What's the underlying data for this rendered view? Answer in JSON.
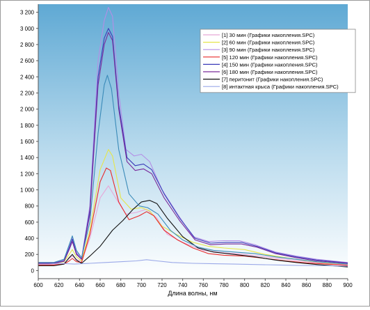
{
  "chart_data": {
    "type": "line",
    "title": "",
    "xlabel": "Длина волны, нм",
    "ylabel": "",
    "xlim": [
      600,
      900
    ],
    "ylim": [
      -100,
      3300
    ],
    "x_ticks": [
      "600",
      "620",
      "640",
      "660",
      "680",
      "700",
      "720",
      "740",
      "760",
      "780",
      "800",
      "820",
      "840",
      "860",
      "880",
      "900"
    ],
    "y_ticks": [
      "0",
      "200",
      "400",
      "600",
      "800",
      "1 000",
      "1 200",
      "1 400",
      "1 600",
      "1 800",
      "2 000",
      "2 200",
      "2 400",
      "2 600",
      "2 800",
      "3 000",
      "3 200"
    ],
    "grid": false,
    "legend_position": "top-right",
    "background": "gradient-blue-white",
    "series": [
      {
        "name": "[1] 30 мин (Графики накопления.SPC)",
        "color": "#e8a6d8",
        "points": [
          [
            600,
            80
          ],
          [
            615,
            80
          ],
          [
            625,
            90
          ],
          [
            630,
            150
          ],
          [
            633,
            180
          ],
          [
            637,
            140
          ],
          [
            642,
            110
          ],
          [
            650,
            400
          ],
          [
            660,
            900
          ],
          [
            668,
            1050
          ],
          [
            675,
            900
          ],
          [
            685,
            700
          ],
          [
            695,
            720
          ],
          [
            705,
            760
          ],
          [
            715,
            650
          ],
          [
            725,
            450
          ],
          [
            740,
            350
          ],
          [
            760,
            250
          ],
          [
            780,
            220
          ],
          [
            800,
            200
          ],
          [
            820,
            170
          ],
          [
            840,
            140
          ],
          [
            860,
            110
          ],
          [
            880,
            90
          ],
          [
            900,
            70
          ]
        ]
      },
      {
        "name": "[2] 60 мин (Графики накопления.SPC)",
        "color": "#e6e64a",
        "points": [
          [
            600,
            90
          ],
          [
            615,
            90
          ],
          [
            625,
            110
          ],
          [
            630,
            200
          ],
          [
            633,
            260
          ],
          [
            637,
            170
          ],
          [
            642,
            120
          ],
          [
            650,
            500
          ],
          [
            660,
            1250
          ],
          [
            668,
            1500
          ],
          [
            672,
            1420
          ],
          [
            680,
            900
          ],
          [
            690,
            760
          ],
          [
            700,
            780
          ],
          [
            708,
            740
          ],
          [
            720,
            550
          ],
          [
            735,
            440
          ],
          [
            750,
            350
          ],
          [
            765,
            300
          ],
          [
            780,
            280
          ],
          [
            800,
            260
          ],
          [
            820,
            200
          ],
          [
            840,
            160
          ],
          [
            860,
            120
          ],
          [
            880,
            95
          ],
          [
            900,
            80
          ]
        ]
      },
      {
        "name": "[3] 90 мин (Графики накопления.SPC)",
        "color": "#b48ee6",
        "points": [
          [
            600,
            100
          ],
          [
            615,
            100
          ],
          [
            625,
            130
          ],
          [
            630,
            300
          ],
          [
            633,
            420
          ],
          [
            637,
            230
          ],
          [
            642,
            150
          ],
          [
            650,
            800
          ],
          [
            658,
            2600
          ],
          [
            664,
            3100
          ],
          [
            668,
            3260
          ],
          [
            672,
            3150
          ],
          [
            678,
            2200
          ],
          [
            685,
            1500
          ],
          [
            693,
            1420
          ],
          [
            700,
            1440
          ],
          [
            708,
            1350
          ],
          [
            720,
            1000
          ],
          [
            735,
            700
          ],
          [
            750,
            420
          ],
          [
            765,
            360
          ],
          [
            780,
            370
          ],
          [
            795,
            370
          ],
          [
            810,
            320
          ],
          [
            830,
            230
          ],
          [
            850,
            180
          ],
          [
            870,
            140
          ],
          [
            900,
            100
          ]
        ]
      },
      {
        "name": "[5] 120 мин (Графики накопления.SPC)",
        "color": "#e82a2a",
        "points": [
          [
            600,
            70
          ],
          [
            615,
            70
          ],
          [
            625,
            80
          ],
          [
            630,
            120
          ],
          [
            633,
            150
          ],
          [
            637,
            110
          ],
          [
            642,
            100
          ],
          [
            650,
            450
          ],
          [
            660,
            1100
          ],
          [
            666,
            1270
          ],
          [
            670,
            1240
          ],
          [
            678,
            850
          ],
          [
            688,
            630
          ],
          [
            698,
            680
          ],
          [
            705,
            730
          ],
          [
            712,
            680
          ],
          [
            722,
            500
          ],
          [
            735,
            380
          ],
          [
            750,
            280
          ],
          [
            765,
            210
          ],
          [
            780,
            190
          ],
          [
            800,
            180
          ],
          [
            820,
            150
          ],
          [
            840,
            120
          ],
          [
            860,
            95
          ],
          [
            880,
            80
          ],
          [
            900,
            65
          ]
        ]
      },
      {
        "name": "[4] 150 мин (Графики накопления.SPC)",
        "color": "#3a3ab8",
        "points": [
          [
            600,
            95
          ],
          [
            615,
            95
          ],
          [
            625,
            120
          ],
          [
            630,
            280
          ],
          [
            633,
            390
          ],
          [
            637,
            210
          ],
          [
            642,
            140
          ],
          [
            650,
            750
          ],
          [
            658,
            2400
          ],
          [
            664,
            2880
          ],
          [
            668,
            3000
          ],
          [
            672,
            2900
          ],
          [
            678,
            2050
          ],
          [
            686,
            1400
          ],
          [
            694,
            1300
          ],
          [
            702,
            1320
          ],
          [
            710,
            1250
          ],
          [
            722,
            950
          ],
          [
            737,
            650
          ],
          [
            752,
            400
          ],
          [
            767,
            340
          ],
          [
            782,
            350
          ],
          [
            797,
            350
          ],
          [
            812,
            300
          ],
          [
            830,
            220
          ],
          [
            850,
            170
          ],
          [
            870,
            130
          ],
          [
            900,
            95
          ]
        ]
      },
      {
        "name": "[6] 180 мин (Графики накопления.SPC)",
        "color": "#7a2a9a",
        "points": [
          [
            600,
            90
          ],
          [
            615,
            90
          ],
          [
            625,
            115
          ],
          [
            630,
            260
          ],
          [
            633,
            360
          ],
          [
            637,
            200
          ],
          [
            642,
            140
          ],
          [
            650,
            700
          ],
          [
            658,
            2300
          ],
          [
            664,
            2800
          ],
          [
            668,
            2950
          ],
          [
            672,
            2850
          ],
          [
            678,
            2000
          ],
          [
            686,
            1350
          ],
          [
            694,
            1240
          ],
          [
            702,
            1260
          ],
          [
            710,
            1200
          ],
          [
            722,
            900
          ],
          [
            737,
            620
          ],
          [
            752,
            380
          ],
          [
            767,
            320
          ],
          [
            782,
            330
          ],
          [
            797,
            330
          ],
          [
            812,
            290
          ],
          [
            830,
            210
          ],
          [
            850,
            160
          ],
          [
            870,
            120
          ],
          [
            900,
            90
          ]
        ]
      },
      {
        "name": "[7] перитонит (Графики накопления.SPC)",
        "color": "#111111",
        "points": [
          [
            600,
            60
          ],
          [
            615,
            60
          ],
          [
            625,
            80
          ],
          [
            630,
            160
          ],
          [
            633,
            200
          ],
          [
            637,
            130
          ],
          [
            642,
            90
          ],
          [
            650,
            180
          ],
          [
            660,
            300
          ],
          [
            672,
            500
          ],
          [
            682,
            620
          ],
          [
            692,
            760
          ],
          [
            700,
            850
          ],
          [
            708,
            870
          ],
          [
            715,
            830
          ],
          [
            725,
            650
          ],
          [
            740,
            420
          ],
          [
            755,
            280
          ],
          [
            770,
            230
          ],
          [
            790,
            200
          ],
          [
            810,
            170
          ],
          [
            830,
            130
          ],
          [
            850,
            100
          ],
          [
            870,
            75
          ],
          [
            890,
            55
          ],
          [
            900,
            45
          ]
        ]
      },
      {
        "name": "[8] интактная крыса (Графики накопления.SPC)",
        "color": "#9aa8e8",
        "points": [
          [
            600,
            80
          ],
          [
            610,
            80
          ],
          [
            620,
            90
          ],
          [
            635,
            80
          ],
          [
            650,
            90
          ],
          [
            665,
            100
          ],
          [
            680,
            110
          ],
          [
            695,
            120
          ],
          [
            705,
            135
          ],
          [
            715,
            120
          ],
          [
            730,
            100
          ],
          [
            750,
            90
          ],
          [
            770,
            85
          ],
          [
            790,
            80
          ],
          [
            810,
            75
          ],
          [
            830,
            70
          ],
          [
            850,
            65
          ],
          [
            880,
            60
          ],
          [
            900,
            55
          ]
        ]
      },
      {
        "name": "",
        "color": "#3a8ab8",
        "points": [
          [
            600,
            100
          ],
          [
            615,
            100
          ],
          [
            625,
            140
          ],
          [
            630,
            320
          ],
          [
            633,
            430
          ],
          [
            637,
            250
          ],
          [
            642,
            160
          ],
          [
            650,
            600
          ],
          [
            658,
            1700
          ],
          [
            664,
            2300
          ],
          [
            667,
            2420
          ],
          [
            671,
            2250
          ],
          [
            678,
            1500
          ],
          [
            688,
            950
          ],
          [
            698,
            800
          ],
          [
            706,
            780
          ],
          [
            716,
            700
          ],
          [
            728,
            500
          ],
          [
            740,
            380
          ],
          [
            755,
            290
          ],
          [
            770,
            250
          ],
          [
            790,
            230
          ],
          [
            810,
            210
          ],
          [
            830,
            170
          ],
          [
            850,
            140
          ],
          [
            870,
            110
          ],
          [
            900,
            80
          ]
        ]
      }
    ]
  }
}
